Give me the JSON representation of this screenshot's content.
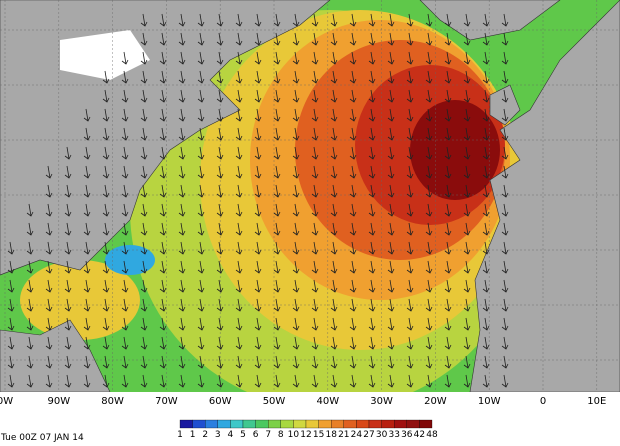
{
  "map": {
    "timestamp": "Tue 00Z 07 JAN 14",
    "lon_labels": [
      "0W",
      "90W",
      "80W",
      "70W",
      "60W",
      "50W",
      "40W",
      "30W",
      "20W",
      "10W",
      "0",
      "10E"
    ],
    "legend": {
      "labels": [
        "1",
        "1",
        "2",
        "3",
        "4",
        "5",
        "6",
        "7",
        "8",
        "10",
        "12",
        "15",
        "18",
        "21",
        "24",
        "27",
        "30",
        "33",
        "36",
        "42",
        "48"
      ],
      "colors": [
        "#1a1aa0",
        "#1f4fd0",
        "#2a7fe0",
        "#30a8e0",
        "#3fc8c8",
        "#40c890",
        "#4cc860",
        "#7cd048",
        "#a8d840",
        "#d0d840",
        "#e8c838",
        "#f0a030",
        "#e88028",
        "#e06020",
        "#d84818",
        "#c83018",
        "#b82010",
        "#a01010",
        "#901010",
        "#800808"
      ]
    }
  }
}
